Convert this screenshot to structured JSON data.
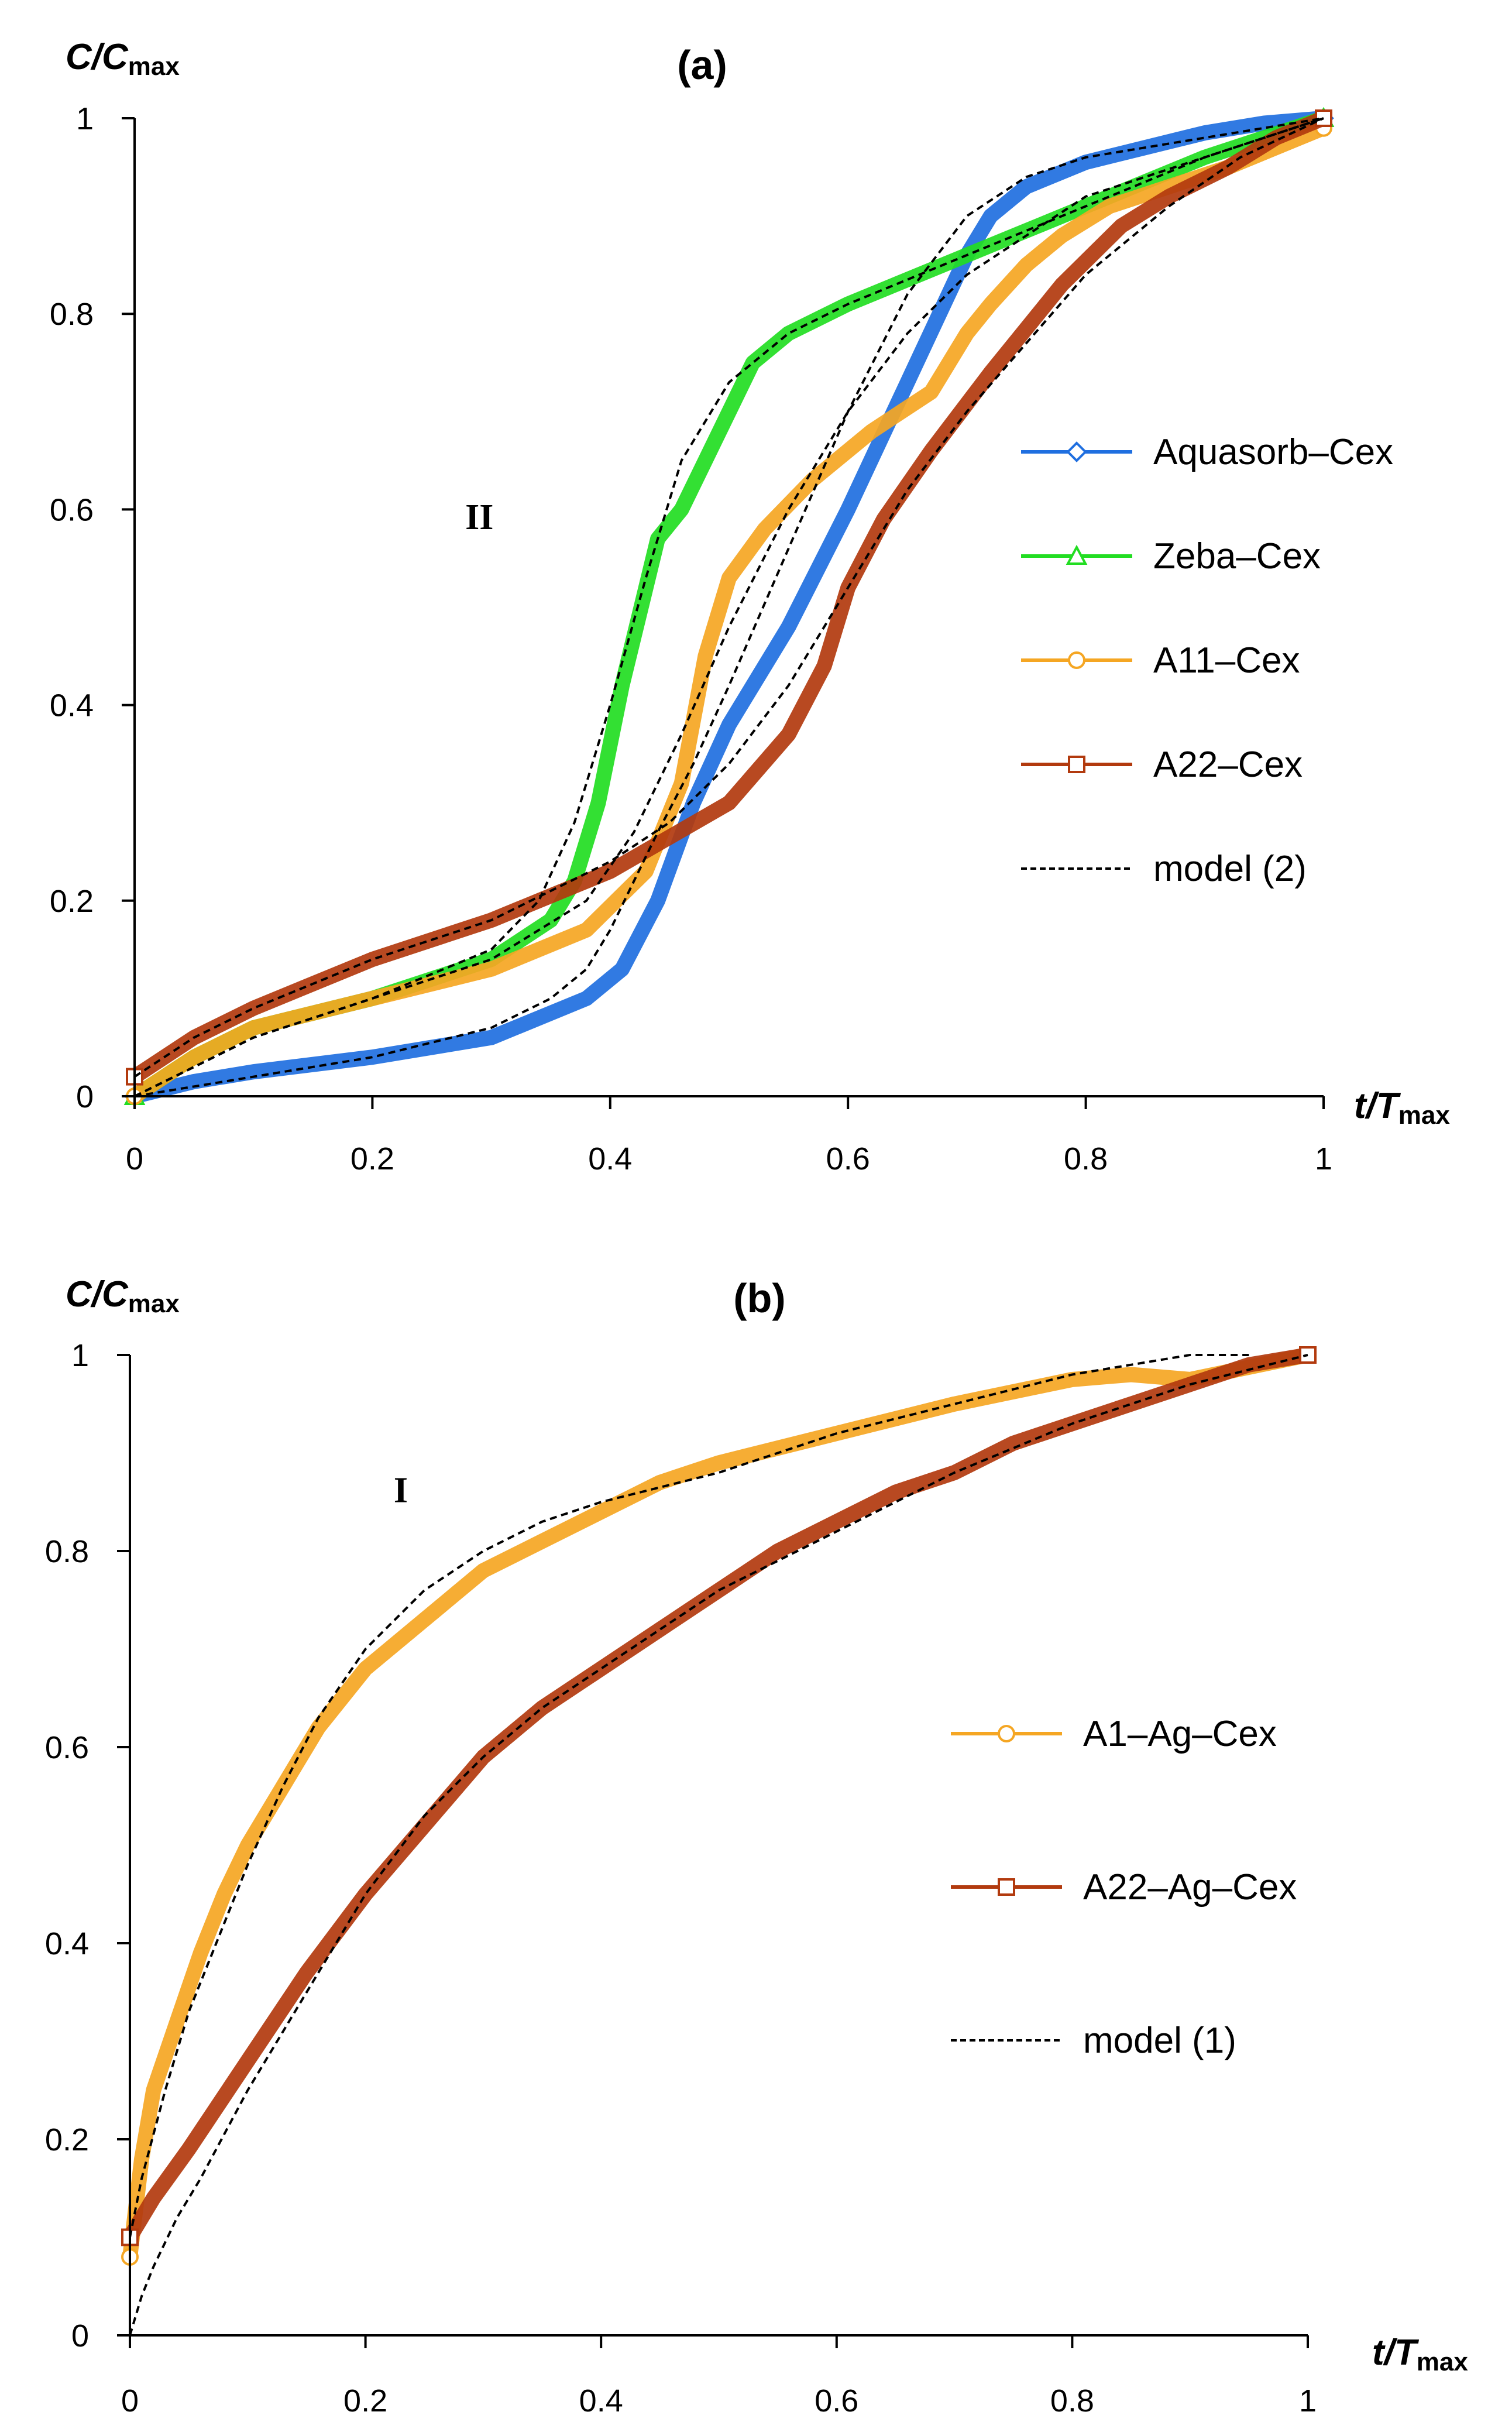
{
  "chart_data": [
    {
      "id": "a",
      "type": "line",
      "title": "(a)",
      "ylabel": {
        "main": "C/C",
        "sub": "max"
      },
      "xlabel": {
        "main": "t/T",
        "sub": "max"
      },
      "xlim": [
        0,
        1
      ],
      "ylim": [
        0,
        1
      ],
      "xticks": [
        "0",
        "0.2",
        "0.4",
        "0.6",
        "0.8",
        "1"
      ],
      "yticks": [
        "0",
        "0.2",
        "0.4",
        "0.6",
        "0.8",
        "1"
      ],
      "region_label": "II",
      "region_pos": [
        0.29,
        0.58
      ],
      "legend": "right",
      "series": [
        {
          "name": "Aquasorb–Cex",
          "color": "#1f6fe0",
          "marker": "diamond",
          "x": [
            0,
            0.05,
            0.1,
            0.2,
            0.3,
            0.38,
            0.41,
            0.44,
            0.47,
            0.5,
            0.55,
            0.6,
            0.65,
            0.7,
            0.72,
            0.75,
            0.8,
            0.85,
            0.9,
            0.95,
            1.0
          ],
          "y": [
            0,
            0.015,
            0.025,
            0.04,
            0.06,
            0.1,
            0.13,
            0.2,
            0.3,
            0.38,
            0.48,
            0.6,
            0.73,
            0.86,
            0.9,
            0.93,
            0.955,
            0.97,
            0.985,
            0.995,
            1.0
          ]
        },
        {
          "name": "Zeba–Cex",
          "color": "#22dd22",
          "marker": "triangle",
          "x": [
            0,
            0.05,
            0.1,
            0.2,
            0.3,
            0.35,
            0.37,
            0.39,
            0.41,
            0.43,
            0.44,
            0.46,
            0.48,
            0.5,
            0.52,
            0.55,
            0.6,
            0.7,
            0.8,
            0.9,
            1.0
          ],
          "y": [
            0,
            0.04,
            0.07,
            0.1,
            0.14,
            0.18,
            0.22,
            0.3,
            0.42,
            0.52,
            0.57,
            0.6,
            0.65,
            0.7,
            0.75,
            0.78,
            0.81,
            0.86,
            0.91,
            0.96,
            1.0
          ]
        },
        {
          "name": "A11–Cex",
          "color": "#f5a623",
          "marker": "circle",
          "x": [
            0,
            0.05,
            0.1,
            0.2,
            0.3,
            0.38,
            0.43,
            0.46,
            0.48,
            0.5,
            0.53,
            0.57,
            0.62,
            0.67,
            0.7,
            0.72,
            0.75,
            0.78,
            0.82,
            0.87,
            0.92,
            0.96,
            1.0
          ],
          "y": [
            0,
            0.04,
            0.07,
            0.1,
            0.13,
            0.17,
            0.23,
            0.32,
            0.45,
            0.53,
            0.58,
            0.63,
            0.68,
            0.72,
            0.78,
            0.81,
            0.85,
            0.88,
            0.91,
            0.93,
            0.95,
            0.97,
            0.99
          ]
        },
        {
          "name": "A22–Cex",
          "color": "#b23a0e",
          "marker": "square",
          "x": [
            0,
            0.05,
            0.1,
            0.2,
            0.3,
            0.4,
            0.5,
            0.55,
            0.58,
            0.6,
            0.63,
            0.67,
            0.72,
            0.78,
            0.83,
            0.87,
            0.92,
            0.96,
            1.0
          ],
          "y": [
            0.02,
            0.06,
            0.09,
            0.14,
            0.18,
            0.23,
            0.3,
            0.37,
            0.44,
            0.52,
            0.59,
            0.66,
            0.74,
            0.83,
            0.89,
            0.92,
            0.95,
            0.98,
            1.0
          ]
        },
        {
          "name": "model (2)",
          "color": "#000000",
          "marker": "none",
          "dashed": true,
          "curves": [
            {
              "x": [
                0,
                0.05,
                0.1,
                0.2,
                0.3,
                0.35,
                0.38,
                0.4,
                0.42,
                0.44,
                0.47,
                0.5,
                0.55,
                0.6,
                0.65,
                0.7,
                0.75,
                0.8,
                0.9,
                1.0
              ],
              "y": [
                0,
                0.01,
                0.02,
                0.04,
                0.07,
                0.1,
                0.13,
                0.17,
                0.22,
                0.27,
                0.34,
                0.42,
                0.56,
                0.7,
                0.82,
                0.9,
                0.94,
                0.96,
                0.98,
                1.0
              ]
            },
            {
              "x": [
                0,
                0.05,
                0.1,
                0.2,
                0.3,
                0.34,
                0.37,
                0.4,
                0.43,
                0.46,
                0.5,
                0.55,
                0.6,
                0.7,
                0.8,
                0.9,
                1.0
              ],
              "y": [
                0,
                0.03,
                0.06,
                0.1,
                0.15,
                0.2,
                0.28,
                0.4,
                0.53,
                0.65,
                0.73,
                0.78,
                0.81,
                0.86,
                0.91,
                0.96,
                1.0
              ]
            },
            {
              "x": [
                0,
                0.05,
                0.1,
                0.2,
                0.3,
                0.38,
                0.42,
                0.46,
                0.5,
                0.55,
                0.6,
                0.65,
                0.7,
                0.75,
                0.8,
                0.9,
                1.0
              ],
              "y": [
                0,
                0.03,
                0.06,
                0.1,
                0.14,
                0.2,
                0.27,
                0.37,
                0.48,
                0.6,
                0.7,
                0.78,
                0.84,
                0.88,
                0.92,
                0.96,
                1.0
              ]
            },
            {
              "x": [
                0,
                0.05,
                0.1,
                0.2,
                0.3,
                0.4,
                0.45,
                0.5,
                0.55,
                0.6,
                0.65,
                0.7,
                0.75,
                0.8,
                0.87,
                0.93,
                1.0
              ],
              "y": [
                0.02,
                0.06,
                0.09,
                0.14,
                0.18,
                0.24,
                0.28,
                0.34,
                0.42,
                0.52,
                0.62,
                0.7,
                0.77,
                0.84,
                0.91,
                0.96,
                1.0
              ]
            }
          ]
        }
      ]
    },
    {
      "id": "b",
      "type": "line",
      "title": "(b)",
      "ylabel": {
        "main": "C/C",
        "sub": "max"
      },
      "xlabel": {
        "main": "t/T",
        "sub": "max"
      },
      "xlim": [
        0,
        1
      ],
      "ylim": [
        0,
        1
      ],
      "xticks": [
        "0",
        "0.2",
        "0.4",
        "0.6",
        "0.8",
        "1"
      ],
      "yticks": [
        "0",
        "0.2",
        "0.4",
        "0.6",
        "0.8",
        "1"
      ],
      "region_label": "I",
      "region_pos": [
        0.23,
        0.85
      ],
      "legend": "right",
      "series": [
        {
          "name": "A1–Ag–Cex",
          "color": "#f5a623",
          "marker": "circle",
          "x": [
            0,
            0.01,
            0.02,
            0.04,
            0.06,
            0.08,
            0.1,
            0.13,
            0.16,
            0.2,
            0.25,
            0.3,
            0.35,
            0.4,
            0.45,
            0.5,
            0.6,
            0.7,
            0.8,
            0.85,
            0.9,
            1.0
          ],
          "y": [
            0.08,
            0.18,
            0.25,
            0.32,
            0.39,
            0.45,
            0.5,
            0.56,
            0.62,
            0.68,
            0.73,
            0.78,
            0.81,
            0.84,
            0.87,
            0.89,
            0.92,
            0.95,
            0.975,
            0.98,
            0.975,
            1.0
          ]
        },
        {
          "name": "A22–Ag–Cex",
          "color": "#b23a0e",
          "marker": "square",
          "x": [
            0,
            0.02,
            0.05,
            0.1,
            0.15,
            0.2,
            0.25,
            0.3,
            0.35,
            0.4,
            0.45,
            0.5,
            0.55,
            0.6,
            0.65,
            0.7,
            0.75,
            0.8,
            0.85,
            0.9,
            0.95,
            1.0
          ],
          "y": [
            0.1,
            0.14,
            0.19,
            0.28,
            0.37,
            0.45,
            0.52,
            0.59,
            0.64,
            0.68,
            0.72,
            0.76,
            0.8,
            0.83,
            0.86,
            0.88,
            0.91,
            0.93,
            0.95,
            0.97,
            0.99,
            1.0
          ]
        },
        {
          "name": "model (1)",
          "color": "#000000",
          "marker": "none",
          "dashed": true,
          "curves": [
            {
              "x": [
                0,
                0.01,
                0.03,
                0.05,
                0.08,
                0.1,
                0.13,
                0.16,
                0.2,
                0.25,
                0.3,
                0.35,
                0.4,
                0.5,
                0.6,
                0.7,
                0.8,
                0.9,
                0.95
              ],
              "y": [
                0.1,
                0.16,
                0.25,
                0.33,
                0.42,
                0.48,
                0.56,
                0.63,
                0.7,
                0.76,
                0.8,
                0.83,
                0.85,
                0.88,
                0.92,
                0.95,
                0.98,
                1.0,
                1.0
              ]
            },
            {
              "x": [
                0,
                0.01,
                0.02,
                0.04,
                0.06,
                0.1,
                0.15,
                0.2,
                0.25,
                0.3,
                0.35,
                0.4,
                0.5,
                0.6,
                0.7,
                0.8,
                0.9,
                1.0
              ],
              "y": [
                0,
                0.04,
                0.07,
                0.12,
                0.16,
                0.25,
                0.35,
                0.45,
                0.53,
                0.59,
                0.64,
                0.68,
                0.76,
                0.82,
                0.88,
                0.93,
                0.97,
                1.0
              ]
            }
          ]
        }
      ]
    }
  ]
}
